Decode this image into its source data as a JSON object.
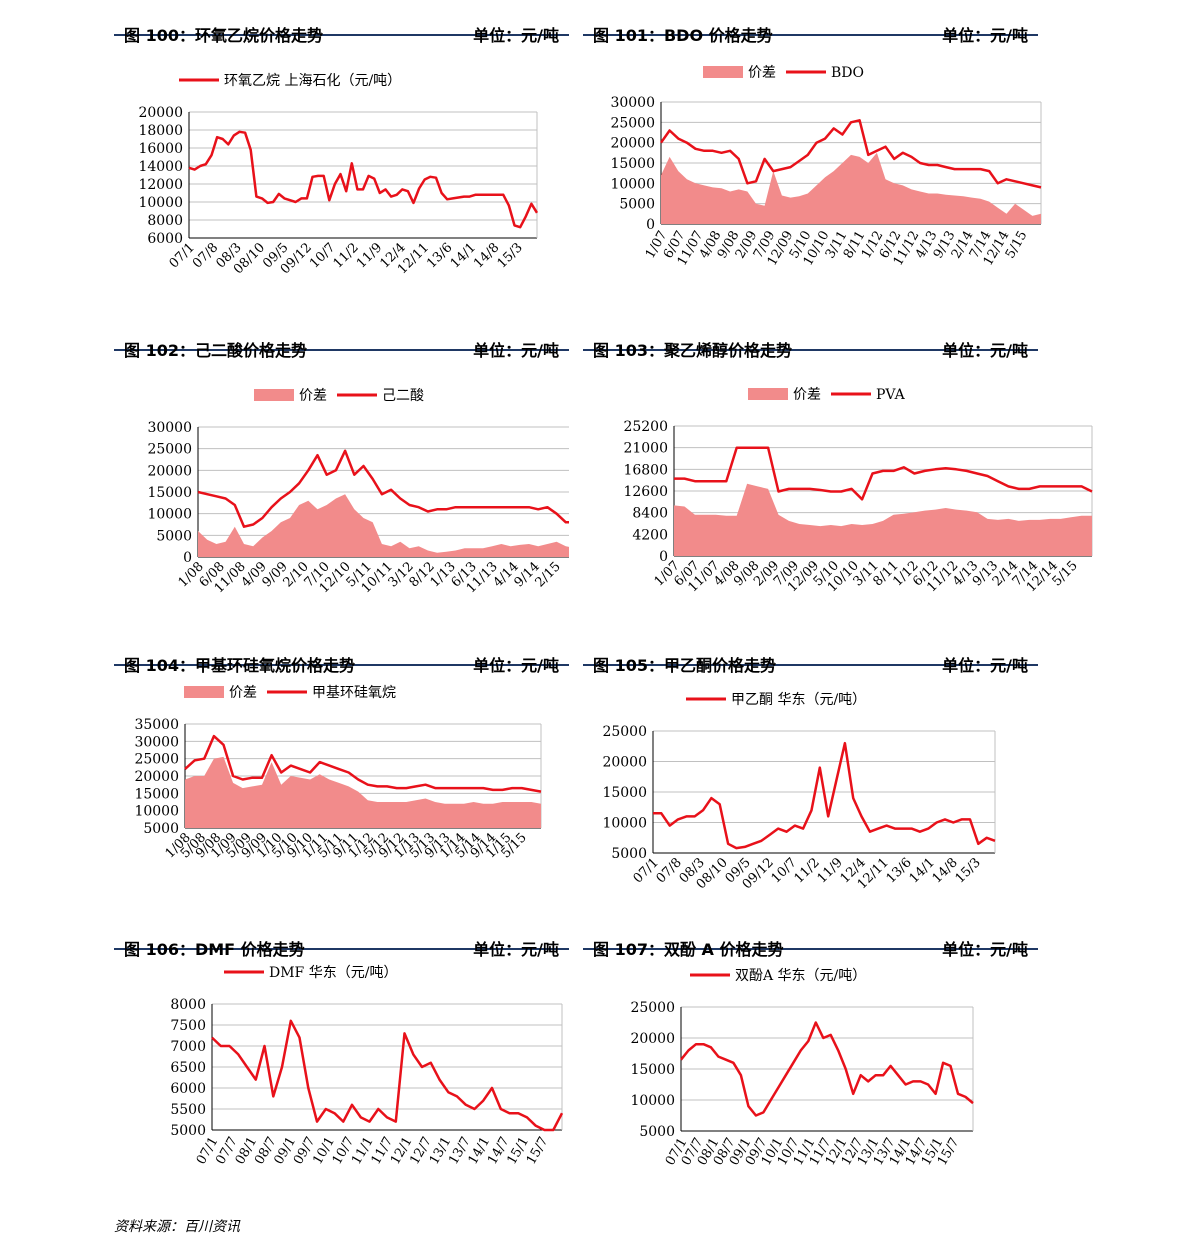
{
  "colors": {
    "line": "#e8111a",
    "area": "#f28b8b",
    "grid": "#c0c0c0",
    "header_rule": "#1f3864"
  },
  "footer": {
    "source": "资料来源：百川资讯"
  },
  "panels": [
    {
      "id": "p100",
      "title": "图 100：环氧乙烷价格走势",
      "unit": "单位：元/吨"
    },
    {
      "id": "p101",
      "title": "图 101：BDO 价格走势",
      "unit": "单位：元/吨"
    },
    {
      "id": "p102",
      "title": "图 102：己二酸价格走势",
      "unit": "单位：元/吨"
    },
    {
      "id": "p103",
      "title": "图 103：聚乙烯醇价格走势",
      "unit": "单位：元/吨"
    },
    {
      "id": "p104",
      "title": "图 104：甲基环硅氧烷价格走势",
      "unit": "单位：元/吨"
    },
    {
      "id": "p105",
      "title": "图 105：甲乙酮价格走势",
      "unit": "单位：元/吨"
    },
    {
      "id": "p106",
      "title": "图 106：DMF 价格走势",
      "unit": "单位：元/吨"
    },
    {
      "id": "p107",
      "title": "图 107：双酚 A 价格走势",
      "unit": "单位：元/吨"
    }
  ],
  "chart_data": [
    {
      "id": "p100",
      "type": "line",
      "legend": [
        "环氧乙烷 上海石化（元/吨）"
      ],
      "yticks": [
        6000,
        8000,
        10000,
        12000,
        14000,
        16000,
        18000,
        20000
      ],
      "ylim": [
        6000,
        20000
      ],
      "xticks": [
        "07/1",
        "07/8",
        "08/3",
        "08/10",
        "09/5",
        "09/12",
        "10/7",
        "11/2",
        "11/9",
        "12/4",
        "12/11",
        "13/6",
        "14/1",
        "14/8",
        "15/3"
      ],
      "series": [
        {
          "name": "环氧乙烷 上海石化（元/吨）",
          "kind": "line",
          "values": [
            13800,
            13600,
            14000,
            14200,
            15200,
            17200,
            17000,
            16400,
            17400,
            17800,
            17700,
            15800,
            10600,
            10400,
            9900,
            10000,
            10900,
            10400,
            10200,
            10000,
            10400,
            10400,
            12800,
            12900,
            12900,
            10200,
            12000,
            13100,
            11200,
            14300,
            11400,
            11400,
            12900,
            12600,
            11000,
            11400,
            10600,
            10800,
            11400,
            11200,
            9900,
            11500,
            12500,
            12800,
            12700,
            11000,
            10300,
            10400,
            10500,
            10600,
            10600,
            10800,
            10800,
            10800,
            10800,
            10800,
            10800,
            9600,
            7400,
            7200,
            8400,
            9800,
            8800
          ]
        }
      ]
    },
    {
      "id": "p101",
      "type": "line+area",
      "legend": [
        "价差",
        "BDO"
      ],
      "yticks": [
        0,
        5000,
        10000,
        15000,
        20000,
        25000,
        30000
      ],
      "ylim": [
        0,
        30000
      ],
      "xticks": [
        "1/07",
        "6/07",
        "11/07",
        "4/08",
        "9/08",
        "2/09",
        "7/09",
        "12/09",
        "5/10",
        "10/10",
        "3/11",
        "8/11",
        "1/12",
        "6/12",
        "11/12",
        "4/13",
        "9/13",
        "2/14",
        "7/14",
        "12/14",
        "5/15"
      ],
      "series": [
        {
          "name": "价差",
          "kind": "area",
          "values": [
            12000,
            16500,
            13000,
            11000,
            10000,
            9500,
            9000,
            8800,
            8000,
            8500,
            8000,
            5000,
            4500,
            13000,
            7000,
            6500,
            6800,
            7500,
            9500,
            11500,
            13000,
            15000,
            17000,
            16500,
            15000,
            17500,
            11000,
            10000,
            9500,
            8500,
            8000,
            7500,
            7500,
            7200,
            7000,
            6800,
            6500,
            6200,
            5500,
            4000,
            2500,
            5000,
            3500,
            2000,
            2500
          ]
        },
        {
          "name": "BDO",
          "kind": "line",
          "values": [
            20000,
            23000,
            21000,
            20000,
            18500,
            18000,
            18000,
            17500,
            18000,
            16000,
            10000,
            10500,
            16000,
            13000,
            13500,
            14000,
            15500,
            17000,
            20000,
            21000,
            23500,
            22000,
            25000,
            25500,
            17000,
            18000,
            19000,
            16000,
            17500,
            16500,
            15000,
            14500,
            14500,
            14000,
            13500,
            13500,
            13500,
            13500,
            13000,
            10000,
            11000,
            10500,
            10000,
            9500,
            9000
          ]
        }
      ]
    },
    {
      "id": "p102",
      "type": "line+area",
      "legend": [
        "价差",
        "己二酸"
      ],
      "yticks": [
        0,
        5000,
        10000,
        15000,
        20000,
        25000,
        30000
      ],
      "ylim": [
        0,
        30000
      ],
      "xticks": [
        "1/08",
        "6/08",
        "11/08",
        "4/09",
        "9/09",
        "2/10",
        "7/10",
        "12/10",
        "5/11",
        "10/11",
        "3/12",
        "8/12",
        "1/13",
        "6/13",
        "11/13",
        "4/14",
        "9/14",
        "2/15"
      ],
      "series": [
        {
          "name": "价差",
          "kind": "area",
          "values": [
            6000,
            4000,
            3000,
            3500,
            7000,
            3000,
            2500,
            4500,
            6000,
            8000,
            9000,
            12000,
            13000,
            11000,
            12000,
            13500,
            14500,
            11000,
            9000,
            8000,
            3000,
            2500,
            3500,
            2000,
            2500,
            1500,
            1000,
            1200,
            1500,
            2000,
            2000,
            2000,
            2500,
            3000,
            2500,
            2800,
            3000,
            2500,
            3000,
            3500,
            2500,
            2000
          ]
        },
        {
          "name": "己二酸",
          "kind": "line",
          "values": [
            15000,
            14500,
            14000,
            13500,
            12000,
            7000,
            7500,
            9000,
            11500,
            13500,
            15000,
            17000,
            20000,
            23500,
            19000,
            20000,
            24500,
            19000,
            21000,
            18000,
            14500,
            15500,
            13500,
            12000,
            11500,
            10500,
            11000,
            11000,
            11500,
            11500,
            11500,
            11500,
            11500,
            11500,
            11500,
            11500,
            11500,
            11000,
            11500,
            10000,
            8000,
            8000
          ]
        }
      ]
    },
    {
      "id": "p103",
      "type": "line+area",
      "legend": [
        "价差",
        "PVA"
      ],
      "yticks": [
        0,
        4200,
        8400,
        12600,
        16800,
        21000,
        25200
      ],
      "ylim": [
        0,
        25200
      ],
      "xticks": [
        "1/07",
        "6/07",
        "11/07",
        "4/08",
        "9/08",
        "2/09",
        "7/09",
        "12/09",
        "5/10",
        "10/10",
        "3/11",
        "8/11",
        "1/12",
        "6/12",
        "11/12",
        "4/13",
        "9/13",
        "2/14",
        "7/14",
        "12/14",
        "5/15"
      ],
      "series": [
        {
          "name": "价差",
          "kind": "area",
          "values": [
            9800,
            9600,
            8000,
            8000,
            8000,
            7800,
            7800,
            14000,
            13500,
            13000,
            8000,
            6800,
            6200,
            6000,
            5800,
            6000,
            5800,
            6200,
            6000,
            6200,
            6800,
            8000,
            8200,
            8500,
            8800,
            9000,
            9300,
            9000,
            8800,
            8500,
            7200,
            7000,
            7200,
            6800,
            7000,
            7000,
            7200,
            7200,
            7500,
            7800,
            7800
          ]
        },
        {
          "name": "PVA",
          "kind": "line",
          "values": [
            15000,
            15000,
            14500,
            14500,
            14500,
            14500,
            21000,
            21000,
            21000,
            21000,
            12500,
            13000,
            13000,
            13000,
            12800,
            12500,
            12500,
            13000,
            11000,
            16000,
            16500,
            16500,
            17200,
            16000,
            16500,
            16800,
            17000,
            16800,
            16500,
            16000,
            15500,
            14500,
            13500,
            13000,
            13000,
            13500,
            13500,
            13500,
            13500,
            13500,
            12500
          ]
        }
      ]
    },
    {
      "id": "p104",
      "type": "line+area",
      "legend": [
        "价差",
        "甲基环硅氧烷"
      ],
      "yticks": [
        5000,
        10000,
        15000,
        20000,
        25000,
        30000,
        35000
      ],
      "ylim": [
        5000,
        35000
      ],
      "xticks": [
        "1/08",
        "5/08",
        "9/08",
        "1/09",
        "5/09",
        "9/09",
        "1/10",
        "5/10",
        "9/10",
        "1/11",
        "5/11",
        "9/11",
        "1/12",
        "5/12",
        "9/12",
        "1/13",
        "5/13",
        "9/13",
        "1/14",
        "5/14",
        "9/14",
        "1/15",
        "5/15"
      ],
      "series": [
        {
          "name": "价差",
          "kind": "area",
          "values": [
            19000,
            20000,
            20000,
            25000,
            25500,
            18000,
            16500,
            17000,
            17500,
            24000,
            17500,
            20000,
            19500,
            19000,
            20500,
            19000,
            18000,
            17000,
            15500,
            13000,
            12500,
            12500,
            12500,
            12500,
            13000,
            13500,
            12500,
            12000,
            12000,
            12000,
            12500,
            12000,
            12000,
            12500,
            12500,
            12500,
            12500,
            12000
          ]
        },
        {
          "name": "甲基环硅氧烷",
          "kind": "line",
          "values": [
            22000,
            24500,
            25000,
            31500,
            29000,
            20000,
            19000,
            19500,
            19500,
            26000,
            21000,
            23000,
            22000,
            21000,
            24000,
            23000,
            22000,
            21000,
            19000,
            17500,
            17000,
            17000,
            16500,
            16500,
            17000,
            17500,
            16500,
            16500,
            16500,
            16500,
            16500,
            16500,
            16000,
            16000,
            16500,
            16500,
            16000,
            15500
          ]
        }
      ]
    },
    {
      "id": "p105",
      "type": "line",
      "legend": [
        "甲乙酮 华东（元/吨）"
      ],
      "yticks": [
        5000,
        10000,
        15000,
        20000,
        25000
      ],
      "ylim": [
        5000,
        25000
      ],
      "xticks": [
        "07/1",
        "07/8",
        "08/3",
        "08/10",
        "09/5",
        "09/12",
        "10/7",
        "11/2",
        "11/9",
        "12/4",
        "12/11",
        "13/6",
        "14/1",
        "14/8",
        "15/3"
      ],
      "series": [
        {
          "name": "甲乙酮 华东（元/吨）",
          "kind": "line",
          "values": [
            11500,
            11500,
            9500,
            10500,
            11000,
            11000,
            12000,
            14000,
            13000,
            6500,
            5800,
            6000,
            6500,
            7000,
            8000,
            9000,
            8500,
            9500,
            9000,
            12000,
            19000,
            11000,
            17000,
            23000,
            14000,
            11000,
            8500,
            9000,
            9500,
            9000,
            9000,
            9000,
            8500,
            9000,
            10000,
            10500,
            10000,
            10500,
            10500,
            6500,
            7500,
            7000
          ]
        }
      ]
    },
    {
      "id": "p106",
      "type": "line",
      "legend": [
        "DMF 华东（元/吨）"
      ],
      "yticks": [
        5000,
        5500,
        6000,
        6500,
        7000,
        7500,
        8000
      ],
      "ylim": [
        5000,
        8000
      ],
      "xticks": [
        "07/1",
        "07/7",
        "08/1",
        "08/7",
        "09/1",
        "09/7",
        "10/1",
        "10/7",
        "11/1",
        "11/7",
        "12/1",
        "12/7",
        "13/1",
        "13/7",
        "14/1",
        "14/7",
        "15/1",
        "15/7"
      ],
      "series": [
        {
          "name": "DMF 华东（元/吨）",
          "kind": "line",
          "values": [
            7200,
            7000,
            7000,
            6800,
            6500,
            6200,
            7000,
            5800,
            6500,
            7600,
            7200,
            6000,
            5200,
            5500,
            5400,
            5200,
            5600,
            5300,
            5200,
            5500,
            5300,
            5200,
            7300,
            6800,
            6500,
            6600,
            6200,
            5900,
            5800,
            5600,
            5500,
            5700,
            6000,
            5500,
            5400,
            5400,
            5300,
            5100,
            5000,
            5000,
            5400
          ]
        }
      ]
    },
    {
      "id": "p107",
      "type": "line",
      "legend": [
        "双酚A 华东（元/吨）"
      ],
      "yticks": [
        5000,
        10000,
        15000,
        20000,
        25000
      ],
      "ylim": [
        5000,
        25000
      ],
      "xticks": [
        "07/1",
        "07/7",
        "08/1",
        "08/7",
        "09/1",
        "09/7",
        "10/1",
        "10/7",
        "11/1",
        "11/7",
        "12/1",
        "12/7",
        "13/1",
        "13/7",
        "14/1",
        "14/7",
        "15/1",
        "15/7"
      ],
      "series": [
        {
          "name": "双酚A 华东（元/吨）",
          "kind": "line",
          "values": [
            16500,
            18000,
            19000,
            19000,
            18500,
            17000,
            16500,
            16000,
            14000,
            9000,
            7500,
            8000,
            10000,
            12000,
            14000,
            16000,
            18000,
            19500,
            22500,
            20000,
            20500,
            18000,
            15000,
            11000,
            14000,
            13000,
            14000,
            14000,
            15500,
            14000,
            12500,
            13000,
            13000,
            12500,
            11000,
            16000,
            15500,
            11000,
            10500,
            9500
          ]
        }
      ]
    }
  ]
}
